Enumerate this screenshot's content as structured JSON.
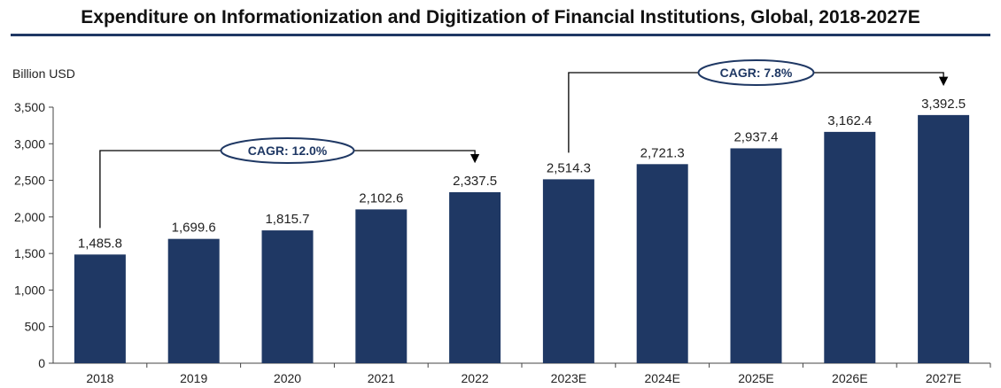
{
  "chart_data": {
    "type": "bar",
    "title": "Expenditure on Informationization and Digitization of Financial Institutions, Global, 2018-2027E",
    "ylabel": "Billion USD",
    "xlabel": "",
    "ylim": [
      0,
      3500
    ],
    "yticks": [
      0,
      500,
      1000,
      1500,
      2000,
      2500,
      3000,
      3500
    ],
    "ytick_labels": [
      "0",
      "500",
      "1,000",
      "1,500",
      "2,000",
      "2,500",
      "3,000",
      "3,500"
    ],
    "categories": [
      "2018",
      "2019",
      "2020",
      "2021",
      "2022",
      "2023E",
      "2024E",
      "2025E",
      "2026E",
      "2027E"
    ],
    "values": [
      1485.8,
      1699.6,
      1815.7,
      2102.6,
      2337.5,
      2514.3,
      2721.3,
      2937.4,
      3162.4,
      3392.5
    ],
    "value_labels": [
      "1,485.8",
      "1,699.6",
      "1,815.7",
      "2,102.6",
      "2,337.5",
      "2,514.3",
      "2,721.3",
      "2,937.4",
      "3,162.4",
      "3,392.5"
    ],
    "bar_color": "#1f3864",
    "grid": false,
    "annotations": [
      {
        "text": "CAGR: 12.0%",
        "from": "2018",
        "to": "2022"
      },
      {
        "text": "CAGR: 7.8%",
        "from": "2023E",
        "to": "2027E"
      }
    ]
  }
}
